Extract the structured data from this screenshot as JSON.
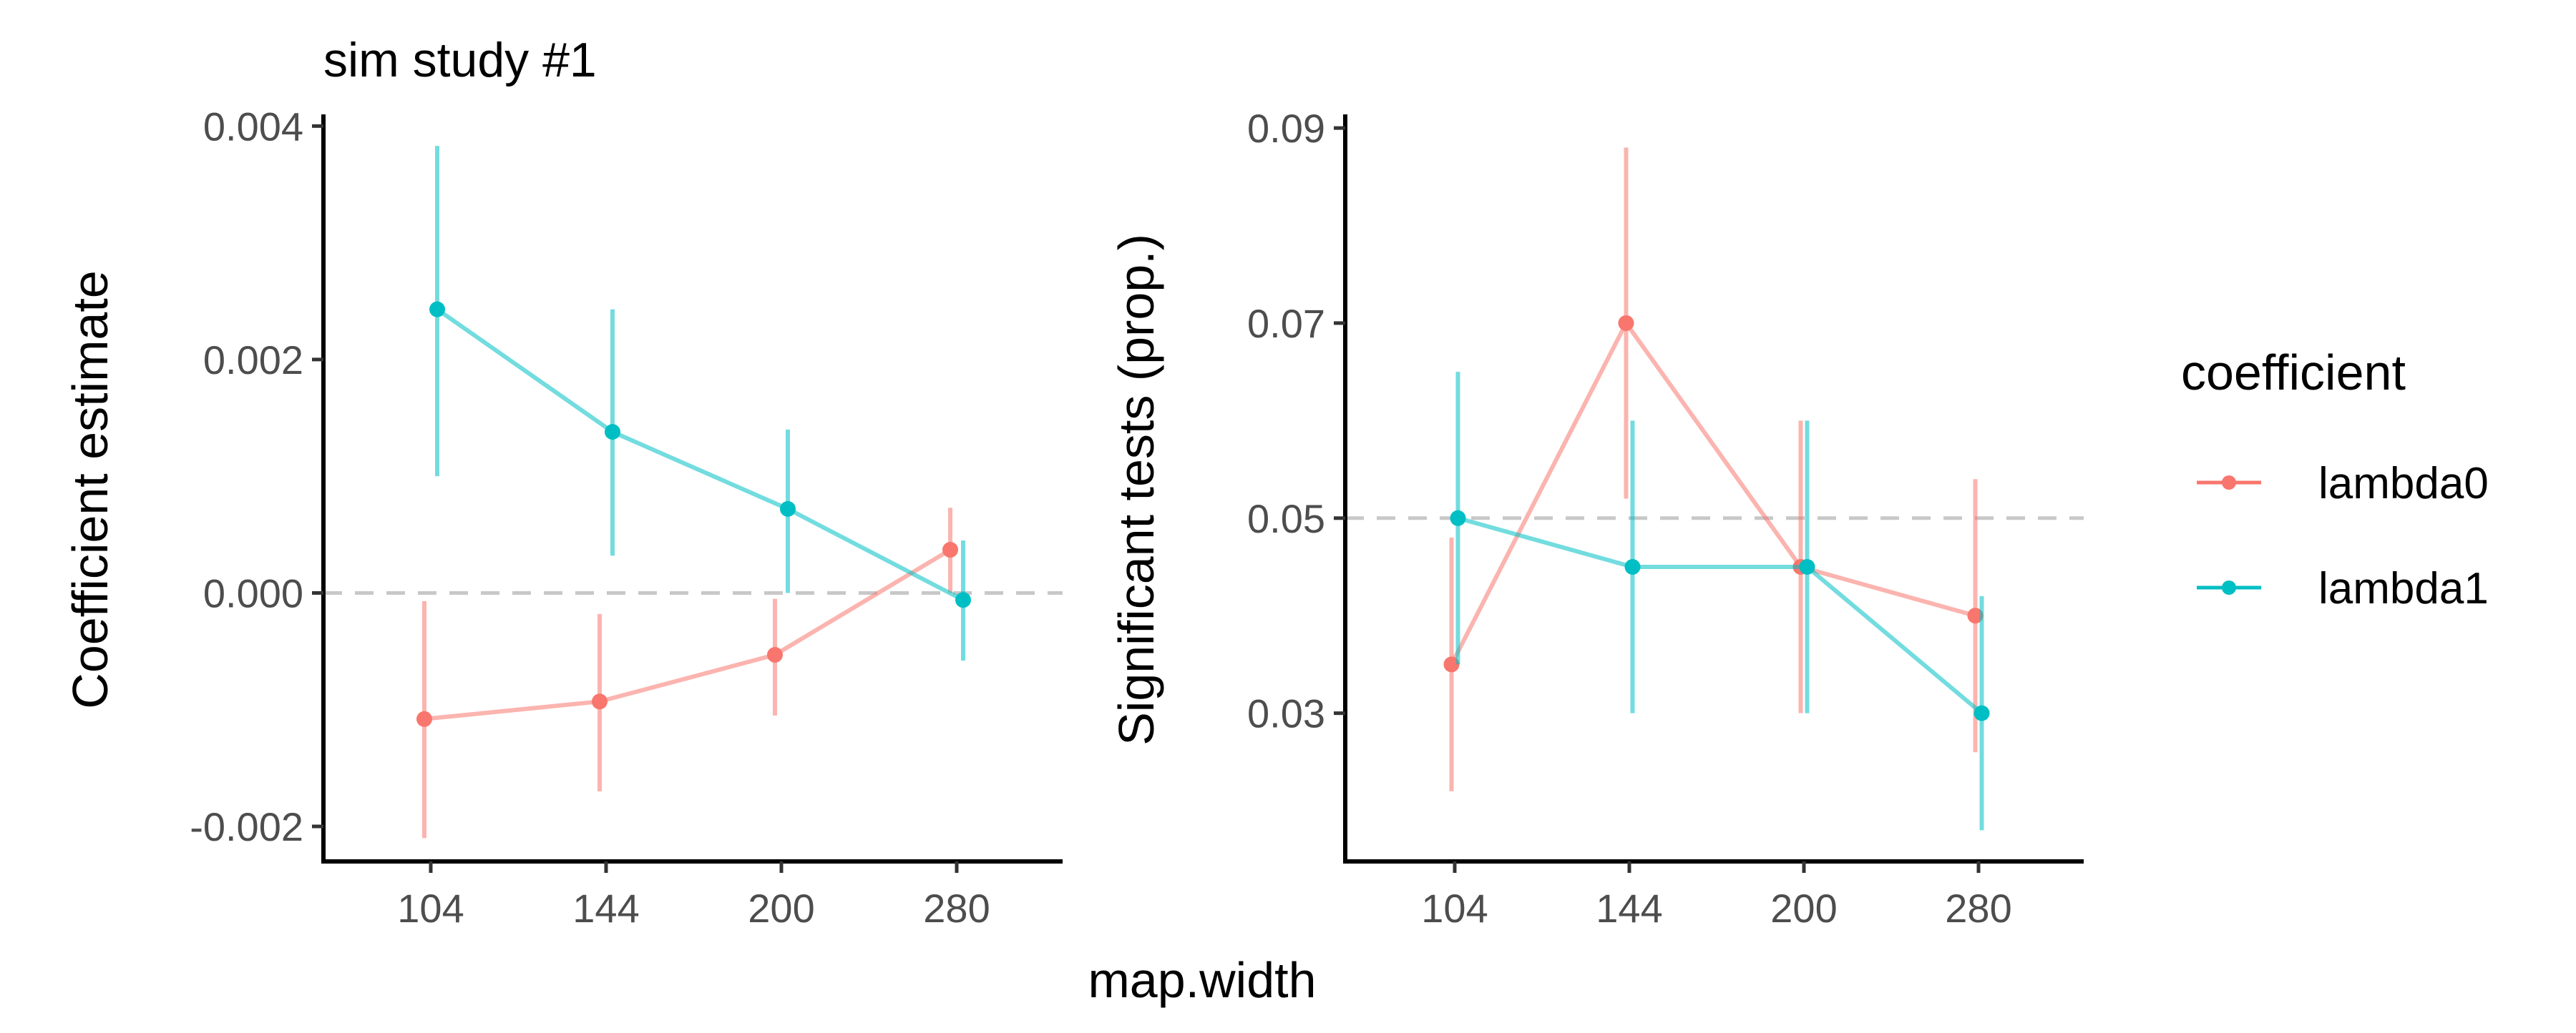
{
  "figure": {
    "shared_xlabel": "map.width",
    "legend": {
      "title": "coefficient",
      "entries": [
        {
          "label": "lambda0",
          "color": "#F8766D"
        },
        {
          "label": "lambda1",
          "color": "#00BFC4"
        }
      ]
    }
  },
  "chart_data": [
    {
      "type": "line",
      "title": "sim study #1",
      "xlabel": "map.width",
      "ylabel": "Coefficient estimate",
      "categories": [
        "104",
        "144",
        "200",
        "280"
      ],
      "ylim": [
        -0.0023,
        0.0041
      ],
      "yticks": [
        -0.002,
        0.0,
        0.002,
        0.004
      ],
      "ytick_labels": [
        "-0.002",
        "0.000",
        "0.002",
        "0.004"
      ],
      "reference_line": 0.0,
      "series": [
        {
          "name": "lambda0",
          "color": "#F8766D",
          "values": [
            -0.00108,
            -0.00093,
            -0.00053,
            0.00037
          ],
          "lower": [
            -0.0021,
            -0.0017,
            -0.00105,
            0.0
          ],
          "upper": [
            -7e-05,
            -0.00018,
            -5e-05,
            0.00073
          ]
        },
        {
          "name": "lambda1",
          "color": "#00BFC4",
          "values": [
            0.00243,
            0.00138,
            0.00072,
            -6e-05
          ],
          "lower": [
            0.001,
            0.00032,
            0.0,
            -0.00058
          ],
          "upper": [
            0.00383,
            0.00243,
            0.0014,
            0.00045
          ]
        }
      ],
      "grid": false,
      "legend": "right"
    },
    {
      "type": "line",
      "title": "",
      "xlabel": "map.width",
      "ylabel": "Significant tests (prop.)",
      "categories": [
        "104",
        "144",
        "200",
        "280"
      ],
      "ylim": [
        0.0148,
        0.0914
      ],
      "yticks": [
        0.03,
        0.05,
        0.07,
        0.09
      ],
      "ytick_labels": [
        "0.03",
        "0.05",
        "0.07",
        "0.09"
      ],
      "reference_line": 0.05,
      "series": [
        {
          "name": "lambda0",
          "color": "#F8766D",
          "values": [
            0.035,
            0.07,
            0.045,
            0.04
          ],
          "lower": [
            0.022,
            0.052,
            0.03,
            0.026
          ],
          "upper": [
            0.048,
            0.088,
            0.06,
            0.054
          ]
        },
        {
          "name": "lambda1",
          "color": "#00BFC4",
          "values": [
            0.05,
            0.045,
            0.045,
            0.03
          ],
          "lower": [
            0.035,
            0.03,
            0.03,
            0.018
          ],
          "upper": [
            0.065,
            0.06,
            0.06,
            0.042
          ]
        }
      ],
      "grid": false,
      "legend": "right"
    }
  ]
}
